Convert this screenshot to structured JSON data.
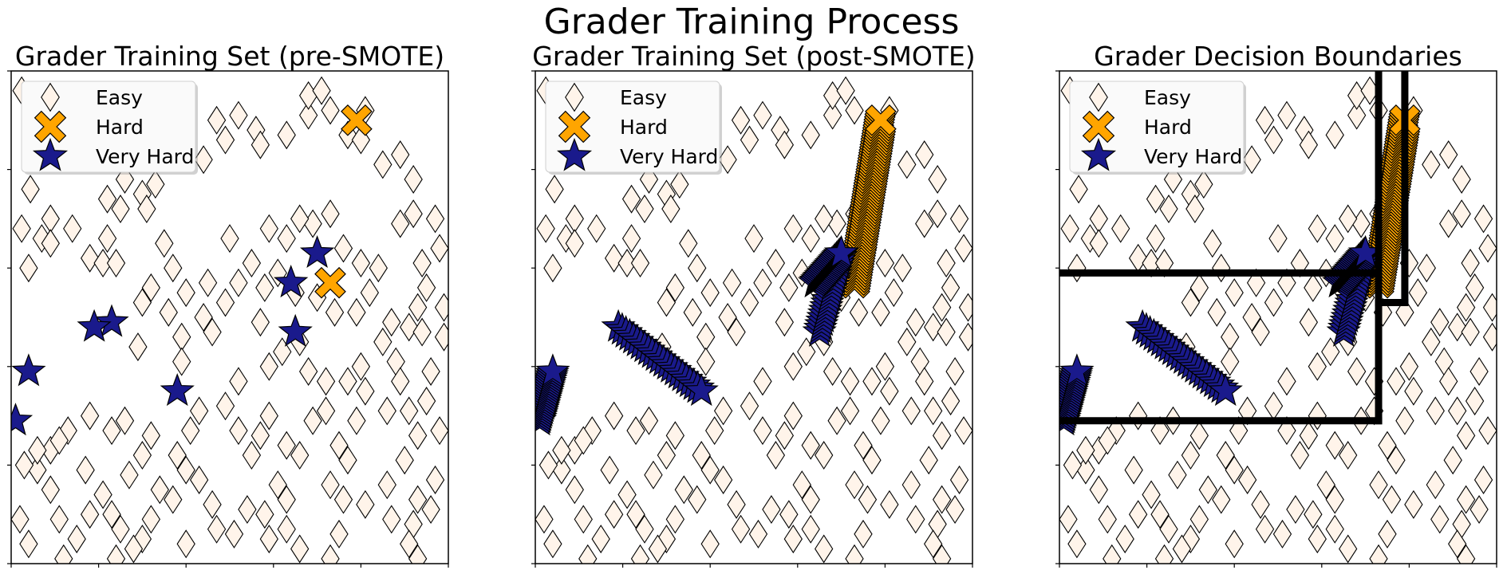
{
  "figure": {
    "title": "Grader Training Process"
  },
  "colors": {
    "easy_fill": "#fff4ea",
    "hard_fill": "#ffa500",
    "very_hard_fill": "#1a1a8c",
    "edge": "#000000",
    "boundary": "#000000"
  },
  "chart_data": [
    {
      "type": "scatter",
      "title": "Grader Training Set (pre-SMOTE)",
      "xlim": [
        0,
        5
      ],
      "ylim": [
        0,
        5
      ],
      "xticks": [
        0,
        1,
        2,
        3,
        4,
        5
      ],
      "yticks": [
        0,
        1,
        2,
        3,
        4,
        5
      ],
      "tick_labels_shown": false,
      "legend": {
        "placement": "top-left",
        "entries": [
          "Easy",
          "Hard",
          "Very Hard"
        ]
      },
      "series": [
        {
          "name": "Easy",
          "marker": "diamond",
          "points": [
            [
              0.12,
              4.8
            ],
            [
              0.32,
              4.5
            ],
            [
              0.5,
              4.3
            ],
            [
              0.22,
              3.8
            ],
            [
              0.35,
              3.3
            ],
            [
              0.45,
              3.5
            ],
            [
              0.12,
              3.4
            ],
            [
              0.2,
              3
            ],
            [
              0.7,
              3.4
            ],
            [
              0.45,
              3.25
            ],
            [
              0.9,
              3.1
            ],
            [
              1.1,
              3.3
            ],
            [
              1.05,
              3.05
            ],
            [
              1.2,
              3.05
            ],
            [
              1.25,
              3.6
            ],
            [
              1.1,
              3.7
            ],
            [
              1.5,
              3.75
            ],
            [
              1.65,
              3.85
            ],
            [
              1.55,
              3.6
            ],
            [
              1.3,
              3.9
            ],
            [
              1.6,
              2.8
            ],
            [
              1.8,
              2.55
            ],
            [
              1.5,
              2.65
            ],
            [
              1.45,
              2.2
            ],
            [
              1.95,
              2.3
            ],
            [
              1.95,
              2.05
            ],
            [
              2.2,
              2.5
            ],
            [
              2.3,
              2.35
            ],
            [
              2.5,
              3.3
            ],
            [
              2.2,
              4.1
            ],
            [
              2.45,
              4.3
            ],
            [
              2.35,
              4.5
            ],
            [
              2.6,
              4.55
            ],
            [
              2.8,
              4.4
            ],
            [
              2.85,
              4.25
            ],
            [
              3.15,
              4.35
            ],
            [
              3.4,
              4.55
            ],
            [
              3.4,
              4.75
            ],
            [
              3.65,
              4.6
            ],
            [
              3.55,
              4.8
            ],
            [
              4.05,
              4.6
            ],
            [
              3.85,
              4.35
            ],
            [
              4.0,
              4.3
            ],
            [
              4.25,
              4.05
            ],
            [
              4.45,
              4.15
            ],
            [
              4.6,
              3.9
            ],
            [
              4.45,
              3.45
            ],
            [
              4.6,
              3.55
            ],
            [
              4.85,
              3.5
            ],
            [
              4.7,
              3.05
            ],
            [
              4.9,
              3.2
            ],
            [
              4.75,
              2.8
            ],
            [
              4.95,
              2.6
            ],
            [
              4.65,
              2.6
            ],
            [
              4.55,
              2.4
            ],
            [
              4.35,
              2.45
            ],
            [
              4.7,
              2.35
            ],
            [
              4.95,
              2.3
            ],
            [
              4.4,
              2.05
            ],
            [
              4.25,
              2.25
            ],
            [
              4.8,
              1.95
            ],
            [
              4.45,
              1.85
            ],
            [
              4.0,
              2.0
            ],
            [
              4.05,
              1.75
            ],
            [
              4.3,
              1.55
            ],
            [
              4.55,
              1.55
            ],
            [
              4.75,
              1.65
            ],
            [
              4.9,
              1.35
            ],
            [
              4.65,
              1.3
            ],
            [
              4.5,
              1.05
            ],
            [
              4.85,
              0.85
            ],
            [
              4.65,
              0.65
            ],
            [
              4.8,
              0.55
            ],
            [
              4.6,
              0.4
            ],
            [
              4.55,
              0.2
            ],
            [
              4.65,
              0.05
            ],
            [
              4.35,
              0.45
            ],
            [
              4.3,
              0.8
            ],
            [
              4.05,
              0.6
            ],
            [
              3.8,
              0.65
            ],
            [
              3.65,
              0.8
            ],
            [
              3.75,
              0.3
            ],
            [
              3.65,
              0.05
            ],
            [
              3.3,
              0.15
            ],
            [
              3.15,
              0.35
            ],
            [
              3.15,
              0.65
            ],
            [
              3.05,
              0.8
            ],
            [
              2.95,
              0.25
            ],
            [
              2.9,
              0.5
            ],
            [
              2.7,
              0.55
            ],
            [
              2.55,
              0.3
            ],
            [
              2.35,
              0.35
            ],
            [
              2.3,
              0.6
            ],
            [
              2.15,
              0.85
            ],
            [
              2.0,
              0.95
            ],
            [
              1.85,
              0.65
            ],
            [
              1.6,
              0.45
            ],
            [
              1.5,
              0.25
            ],
            [
              1.4,
              0.15
            ],
            [
              1.25,
              0.35
            ],
            [
              1.15,
              0.5
            ],
            [
              1.05,
              0.7
            ],
            [
              0.9,
              0.5
            ],
            [
              0.75,
              0.25
            ],
            [
              0.55,
              0.45
            ],
            [
              0.45,
              0.75
            ],
            [
              0.3,
              0.95
            ],
            [
              0.45,
              1.15
            ],
            [
              0.65,
              1.35
            ],
            [
              0.9,
              1.5
            ],
            [
              1.15,
              1.35
            ],
            [
              1.3,
              1.45
            ],
            [
              1.6,
              1.3
            ],
            [
              1.5,
              1.1
            ],
            [
              1.9,
              1.1
            ],
            [
              2.05,
              1.35
            ],
            [
              2.15,
              1.55
            ],
            [
              2.45,
              1.6
            ],
            [
              2.6,
              1.35
            ],
            [
              2.85,
              1.3
            ],
            [
              2.95,
              1.5
            ],
            [
              3.15,
              1.2
            ],
            [
              3.3,
              1.1
            ],
            [
              3.45,
              1.45
            ],
            [
              3.6,
              1.55
            ],
            [
              3.75,
              1.2
            ],
            [
              3.85,
              1.05
            ],
            [
              3.95,
              1.45
            ],
            [
              3.85,
              1.85
            ],
            [
              3.6,
              1.85
            ],
            [
              3.4,
              1.95
            ],
            [
              3.3,
              2.25
            ],
            [
              3.1,
              2.15
            ],
            [
              2.95,
              2.0
            ],
            [
              2.85,
              2.45
            ],
            [
              2.9,
              2.8
            ],
            [
              3.05,
              2.95
            ],
            [
              3.25,
              2.75
            ],
            [
              3.5,
              2.7
            ],
            [
              3.7,
              2.55
            ],
            [
              3.95,
              2.55
            ],
            [
              4.1,
              2.75
            ],
            [
              4.2,
              3.0
            ],
            [
              4.0,
              3.05
            ],
            [
              3.8,
              3.2
            ],
            [
              3.65,
              3.55
            ],
            [
              3.45,
              3.45
            ],
            [
              3.3,
              3.5
            ],
            [
              3.15,
              3.3
            ],
            [
              2.95,
              3.4
            ],
            [
              2.75,
              3.05
            ],
            [
              2.6,
              2.85
            ],
            [
              2.45,
              2.65
            ],
            [
              2.25,
              2.85
            ],
            [
              2.0,
              2.75
            ],
            [
              1.85,
              3.0
            ],
            [
              1.75,
              3.25
            ],
            [
              0.3,
              1.15
            ],
            [
              0.55,
              1.25
            ],
            [
              0.15,
              1.0
            ],
            [
              0.1,
              0.45
            ],
            [
              0.2,
              0.2
            ],
            [
              0.6,
              0.05
            ],
            [
              0.85,
              0.95
            ],
            [
              1.2,
              0.05
            ],
            [
              1.35,
              0.9
            ],
            [
              1.7,
              0.75
            ],
            [
              2.0,
              0.2
            ],
            [
              2.6,
              1.85
            ],
            [
              2.75,
              1.1
            ]
          ]
        },
        {
          "name": "Hard",
          "marker": "X",
          "points": [
            [
              3.95,
              4.5
            ],
            [
              3.65,
              2.85
            ]
          ]
        },
        {
          "name": "Very Hard",
          "marker": "star",
          "points": [
            [
              3.5,
              3.15
            ],
            [
              3.2,
              2.85
            ],
            [
              1.15,
              2.45
            ],
            [
              0.95,
              2.4
            ],
            [
              3.25,
              2.35
            ],
            [
              0.2,
              1.95
            ],
            [
              1.9,
              1.75
            ],
            [
              0.05,
              1.45
            ]
          ]
        }
      ]
    },
    {
      "type": "scatter",
      "title": "Grader Training Set (post-SMOTE)",
      "xlim": [
        0,
        5
      ],
      "ylim": [
        0,
        5
      ],
      "xticks": [
        0,
        1,
        2,
        3,
        4,
        5
      ],
      "yticks": [
        0,
        1,
        2,
        3,
        4,
        5
      ],
      "tick_labels_shown": false,
      "legend": {
        "placement": "top-left",
        "entries": [
          "Easy",
          "Hard",
          "Very Hard"
        ]
      },
      "series": [
        {
          "name": "Easy",
          "marker": "diamond",
          "same_points_as_panel": 0
        },
        {
          "name": "Hard",
          "marker": "X",
          "segments": [
            [
              [
                3.65,
                2.85
              ],
              [
                3.95,
                4.5
              ]
            ]
          ],
          "count": 60
        },
        {
          "name": "Very Hard",
          "marker": "star",
          "segments": [
            [
              [
                0.95,
                2.4
              ],
              [
                1.9,
                1.75
              ]
            ],
            [
              [
                0.05,
                1.45
              ],
              [
                0.2,
                1.95
              ]
            ],
            [
              [
                3.25,
                2.35
              ],
              [
                3.5,
                3.15
              ]
            ],
            [
              [
                3.2,
                2.85
              ],
              [
                3.5,
                3.15
              ]
            ]
          ],
          "count": 90
        }
      ]
    },
    {
      "type": "scatter",
      "title": "Grader Decision Boundaries",
      "xlim": [
        0,
        5
      ],
      "ylim": [
        0,
        5
      ],
      "xticks": [
        0,
        1,
        2,
        3,
        4,
        5
      ],
      "yticks": [
        0,
        1,
        2,
        3,
        4,
        5
      ],
      "tick_labels_shown": false,
      "legend": {
        "placement": "top-left",
        "entries": [
          "Easy",
          "Hard",
          "Very Hard"
        ]
      },
      "series": [
        {
          "name": "Easy",
          "marker": "diamond",
          "same_points_as_panel": 0
        },
        {
          "name": "Hard",
          "marker": "X",
          "same_points_as_panel": 1
        },
        {
          "name": "Very Hard",
          "marker": "star",
          "same_points_as_panel": 1
        }
      ],
      "decision_boundaries": [
        [
          [
            0,
            2.95
          ],
          [
            3.65,
            2.95
          ]
        ],
        [
          [
            3.65,
            5.0
          ],
          [
            3.65,
            1.45
          ]
        ],
        [
          [
            3.65,
            1.45
          ],
          [
            0,
            1.45
          ]
        ],
        [
          [
            3.95,
            5.0
          ],
          [
            3.95,
            2.65
          ]
        ],
        [
          [
            3.95,
            2.65
          ],
          [
            3.65,
            2.65
          ]
        ]
      ]
    }
  ]
}
